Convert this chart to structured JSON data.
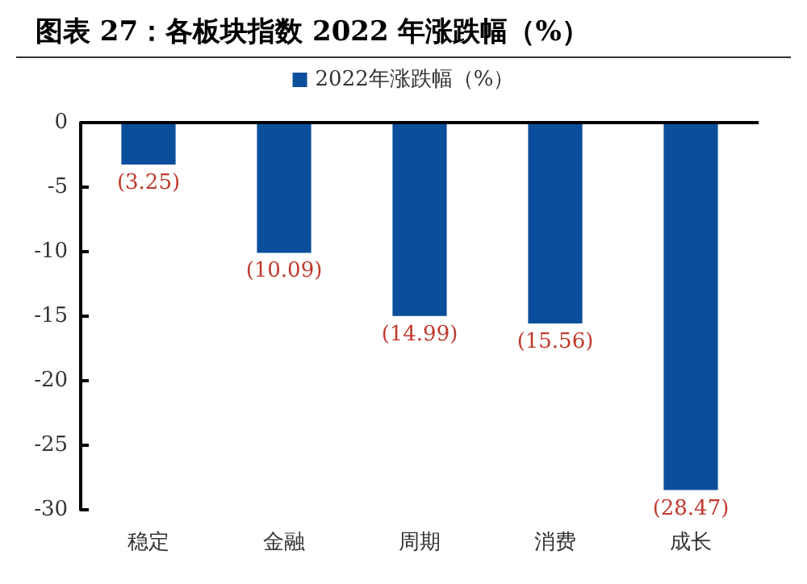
{
  "chart_data": {
    "type": "bar",
    "title": "图表 27：各板块指数 2022 年涨跌幅（%）",
    "categories": [
      "稳定",
      "金融",
      "周期",
      "消费",
      "成长"
    ],
    "series": [
      {
        "name": "2022年涨跌幅（%）",
        "color": "#0b4f9c",
        "values": [
          -3.25,
          -10.09,
          -14.99,
          -15.56,
          -28.47
        ],
        "value_labels": [
          "(3.25)",
          "(10.09)",
          "(14.99)",
          "(15.56)",
          "(28.47)"
        ]
      }
    ],
    "ylim": [
      -30,
      0
    ],
    "yticks": [
      0,
      -5,
      -10,
      -15,
      -20,
      -25,
      -30
    ],
    "grid": false,
    "legend": "top"
  }
}
